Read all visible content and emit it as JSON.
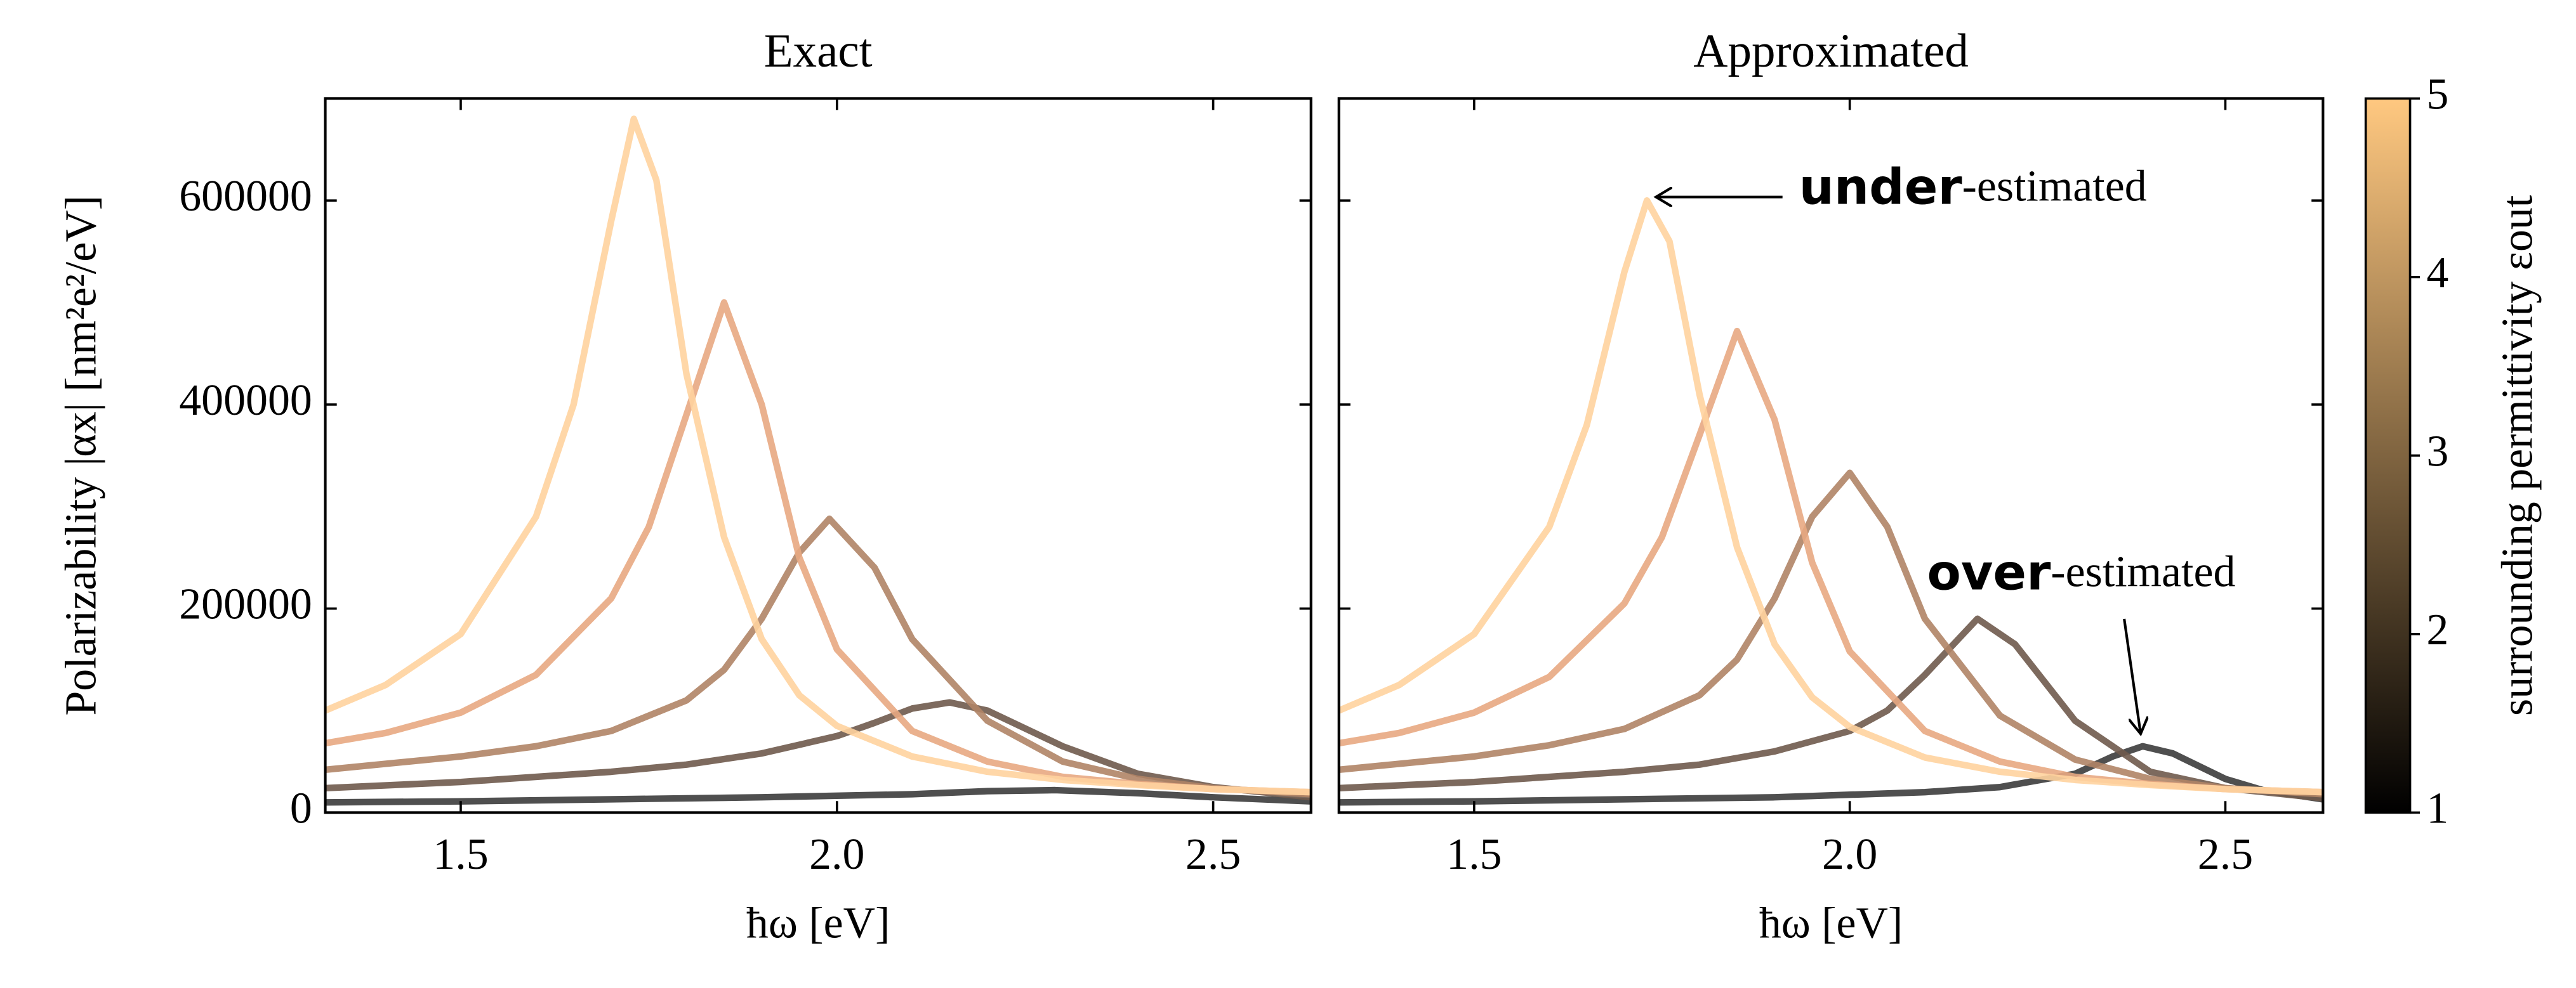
{
  "chart_data": [
    {
      "type": "line",
      "title": "Exact",
      "xlabel": "ħω [eV]",
      "ylabel": "Polarizability |αx| [nm²e²/eV]",
      "xlim": [
        1.32,
        2.63
      ],
      "ylim": [
        0,
        700000
      ],
      "xticks": [
        {
          "value": 1.5,
          "label": "1.5"
        },
        {
          "value": 2.0,
          "label": "2.0"
        },
        {
          "value": 2.5,
          "label": "2.5"
        }
      ],
      "yticks": [
        0,
        200000,
        400000,
        600000
      ],
      "series": [
        {
          "color": "#3c3c3c",
          "x": [
            1.32,
            1.5,
            1.7,
            1.9,
            2.1,
            2.2,
            2.29,
            2.4,
            2.5,
            2.63
          ],
          "values": [
            10000,
            11000,
            13000,
            15000,
            18000,
            21000,
            22000,
            19000,
            15000,
            11000
          ]
        },
        {
          "color": "#6f5a4c",
          "x": [
            1.32,
            1.5,
            1.7,
            1.8,
            1.9,
            2.0,
            2.05,
            2.1,
            2.15,
            2.2,
            2.3,
            2.4,
            2.5,
            2.63
          ],
          "values": [
            24000,
            30000,
            40000,
            47000,
            58000,
            75000,
            88000,
            102000,
            108000,
            100000,
            65000,
            38000,
            25000,
            15000
          ]
        },
        {
          "color": "#b08466",
          "x": [
            1.32,
            1.5,
            1.6,
            1.7,
            1.8,
            1.85,
            1.9,
            1.95,
            1.99,
            2.05,
            2.1,
            2.2,
            2.3,
            2.4,
            2.5,
            2.63
          ],
          "values": [
            42000,
            55000,
            65000,
            80000,
            110000,
            140000,
            190000,
            255000,
            288000,
            240000,
            170000,
            90000,
            50000,
            33000,
            24000,
            18000
          ]
        },
        {
          "color": "#e8a982",
          "x": [
            1.32,
            1.4,
            1.5,
            1.6,
            1.7,
            1.75,
            1.8,
            1.85,
            1.9,
            1.95,
            2.0,
            2.1,
            2.2,
            2.3,
            2.4,
            2.5,
            2.63
          ],
          "values": [
            68000,
            78000,
            98000,
            135000,
            210000,
            280000,
            390000,
            500000,
            400000,
            250000,
            160000,
            80000,
            50000,
            35000,
            28000,
            23000,
            20000
          ]
        },
        {
          "color": "#ffd39e",
          "x": [
            1.32,
            1.4,
            1.5,
            1.6,
            1.65,
            1.7,
            1.73,
            1.76,
            1.8,
            1.85,
            1.9,
            1.95,
            2.0,
            2.1,
            2.2,
            2.3,
            2.4,
            2.5,
            2.63
          ],
          "values": [
            100000,
            125000,
            175000,
            290000,
            400000,
            580000,
            680000,
            620000,
            430000,
            270000,
            170000,
            115000,
            85000,
            55000,
            40000,
            32000,
            27000,
            23000,
            20000
          ]
        }
      ]
    },
    {
      "type": "line",
      "title": "Approximated",
      "xlabel": "ħω [eV]",
      "xlim": [
        1.32,
        2.63
      ],
      "ylim": [
        0,
        700000
      ],
      "xticks": [
        {
          "value": 1.5,
          "label": "1.5"
        },
        {
          "value": 2.0,
          "label": "2.0"
        },
        {
          "value": 2.5,
          "label": "2.5"
        }
      ],
      "yticks": [
        0,
        200000,
        400000,
        600000
      ],
      "annotations": [
        {
          "bold": "under",
          "text": "-estimated"
        },
        {
          "bold": "over",
          "text": "-estimated"
        }
      ],
      "series": [
        {
          "color": "#3c3c3c",
          "x": [
            1.32,
            1.5,
            1.7,
            1.9,
            2.1,
            2.2,
            2.3,
            2.35,
            2.39,
            2.43,
            2.5,
            2.55,
            2.63
          ],
          "values": [
            10000,
            11000,
            13000,
            15000,
            20000,
            25000,
            38000,
            55000,
            65000,
            58000,
            33000,
            22000,
            13000
          ]
        },
        {
          "color": "#6f5a4c",
          "x": [
            1.32,
            1.5,
            1.7,
            1.8,
            1.9,
            2.0,
            2.05,
            2.1,
            2.17,
            2.22,
            2.3,
            2.4,
            2.5,
            2.63
          ],
          "values": [
            24000,
            30000,
            40000,
            47000,
            60000,
            80000,
            100000,
            135000,
            190000,
            165000,
            90000,
            40000,
            24000,
            14000
          ]
        },
        {
          "color": "#b08466",
          "x": [
            1.32,
            1.5,
            1.6,
            1.7,
            1.8,
            1.85,
            1.9,
            1.95,
            2.0,
            2.05,
            2.1,
            2.2,
            2.3,
            2.4,
            2.5,
            2.63
          ],
          "values": [
            42000,
            55000,
            66000,
            82000,
            115000,
            150000,
            210000,
            290000,
            333000,
            280000,
            190000,
            95000,
            52000,
            33000,
            24000,
            18000
          ]
        },
        {
          "color": "#e8a982",
          "x": [
            1.32,
            1.4,
            1.5,
            1.6,
            1.7,
            1.75,
            1.8,
            1.85,
            1.9,
            1.95,
            2.0,
            2.1,
            2.2,
            2.3,
            2.4,
            2.5,
            2.63
          ],
          "values": [
            68000,
            78000,
            98000,
            133000,
            205000,
            270000,
            370000,
            472000,
            385000,
            245000,
            158000,
            80000,
            50000,
            35000,
            28000,
            23000,
            20000
          ]
        },
        {
          "color": "#ffd39e",
          "x": [
            1.32,
            1.4,
            1.5,
            1.6,
            1.65,
            1.7,
            1.73,
            1.76,
            1.8,
            1.85,
            1.9,
            1.95,
            2.0,
            2.1,
            2.2,
            2.3,
            2.4,
            2.5,
            2.63
          ],
          "values": [
            100000,
            125000,
            175000,
            280000,
            380000,
            530000,
            600000,
            560000,
            410000,
            260000,
            165000,
            113000,
            84000,
            54000,
            40000,
            32000,
            27000,
            23000,
            20000
          ]
        }
      ]
    },
    {
      "type": "colorbar",
      "label": "surrounding permittivity εout",
      "lim": [
        1,
        5
      ],
      "ticks": [
        1,
        2,
        3,
        4,
        5
      ],
      "colors": [
        "#000000",
        "#ffc880"
      ]
    }
  ]
}
